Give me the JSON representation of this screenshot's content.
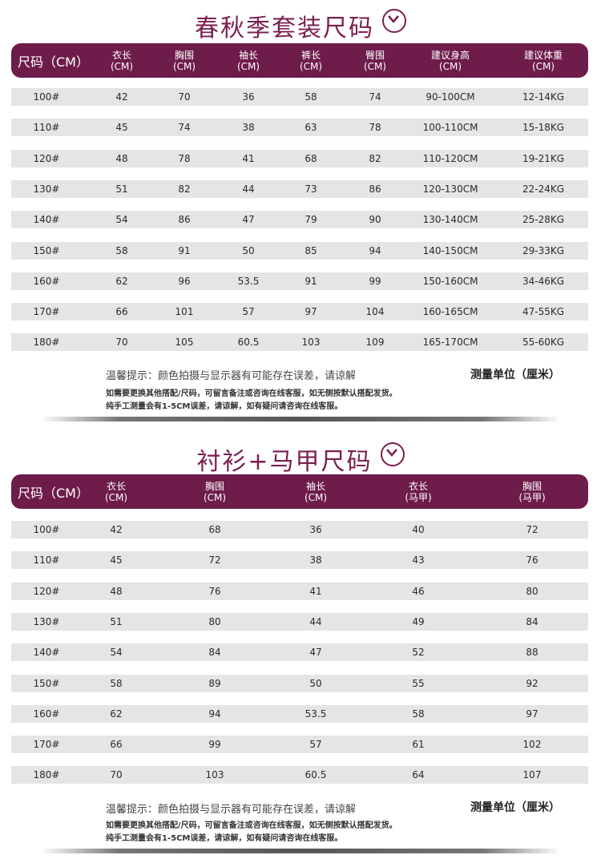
{
  "colors": {
    "accent": "#6e1c4a",
    "title": "#7a1f4f",
    "row_bg": "#e5e5e5"
  },
  "table1": {
    "title": "春秋季套装尺码",
    "icon": "chevron-down-circle-icon",
    "headers": [
      {
        "l1": "尺码（CM）",
        "l2": ""
      },
      {
        "l1": "衣长",
        "l2": "(CM)"
      },
      {
        "l1": "胸围",
        "l2": "(CM)"
      },
      {
        "l1": "袖长",
        "l2": "(CM)"
      },
      {
        "l1": "裤长",
        "l2": "(CM)"
      },
      {
        "l1": "臀围",
        "l2": "(CM)"
      },
      {
        "l1": "建议身高",
        "l2": "(CM)"
      },
      {
        "l1": "建议体重",
        "l2": "(CM)"
      }
    ],
    "rows": [
      [
        "100#",
        "42",
        "70",
        "36",
        "58",
        "74",
        "90-100CM",
        "12-14KG"
      ],
      [
        "110#",
        "45",
        "74",
        "38",
        "63",
        "78",
        "100-110CM",
        "15-18KG"
      ],
      [
        "120#",
        "48",
        "78",
        "41",
        "68",
        "82",
        "110-120CM",
        "19-21KG"
      ],
      [
        "130#",
        "51",
        "82",
        "44",
        "73",
        "86",
        "120-130CM",
        "22-24KG"
      ],
      [
        "140#",
        "54",
        "86",
        "47",
        "79",
        "90",
        "130-140CM",
        "25-28KG"
      ],
      [
        "150#",
        "58",
        "91",
        "50",
        "85",
        "94",
        "140-150CM",
        "29-33KG"
      ],
      [
        "160#",
        "62",
        "96",
        "53.5",
        "91",
        "99",
        "150-160CM",
        "34-46KG"
      ],
      [
        "170#",
        "66",
        "101",
        "57",
        "97",
        "104",
        "160-165CM",
        "47-55KG"
      ],
      [
        "180#",
        "70",
        "105",
        "60.5",
        "103",
        "109",
        "165-170CM",
        "55-60KG"
      ]
    ],
    "note": "温馨提示：颜色拍摄与显示器有可能存在误差，请谅解",
    "note_detail_1": "如需要更换其他搭配/尺码，可留言备注或咨询在线客服，如无侧按默认搭配发货。",
    "note_detail_2": "纯手工测量会有1-5CM误差，请谅解，如有疑问请咨询在线客服。",
    "unit": "测量单位（厘米）"
  },
  "table2": {
    "title": "衬衫+马甲尺码",
    "icon": "chevron-down-circle-icon",
    "headers": [
      {
        "l1": "尺码（CM）",
        "l2": ""
      },
      {
        "l1": "衣长",
        "l2": "(CM)"
      },
      {
        "l1": "胸围",
        "l2": "(CM)"
      },
      {
        "l1": "袖长",
        "l2": "(CM)"
      },
      {
        "l1": "衣长",
        "l2": "(马甲)"
      },
      {
        "l1": "胸围",
        "l2": "(马甲)"
      }
    ],
    "rows": [
      [
        "100#",
        "42",
        "68",
        "36",
        "40",
        "72"
      ],
      [
        "110#",
        "45",
        "72",
        "38",
        "43",
        "76"
      ],
      [
        "120#",
        "48",
        "76",
        "41",
        "46",
        "80"
      ],
      [
        "130#",
        "51",
        "80",
        "44",
        "49",
        "84"
      ],
      [
        "140#",
        "54",
        "84",
        "47",
        "52",
        "88"
      ],
      [
        "150#",
        "58",
        "89",
        "50",
        "55",
        "92"
      ],
      [
        "160#",
        "62",
        "94",
        "53.5",
        "58",
        "97"
      ],
      [
        "170#",
        "66",
        "99",
        "57",
        "61",
        "102"
      ],
      [
        "180#",
        "70",
        "103",
        "60.5",
        "64",
        "107"
      ]
    ],
    "note": "温馨提示：颜色拍摄与显示器有可能存在误差，请谅解",
    "note_detail_1": "如需要更换其他搭配/尺码，可留言备注或咨询在线客服，如无侧按默认搭配发货。",
    "note_detail_2": "纯手工测量会有1-5CM误差，请谅解，如有疑问请咨询在线客服。",
    "unit": "测量单位（厘米）"
  }
}
